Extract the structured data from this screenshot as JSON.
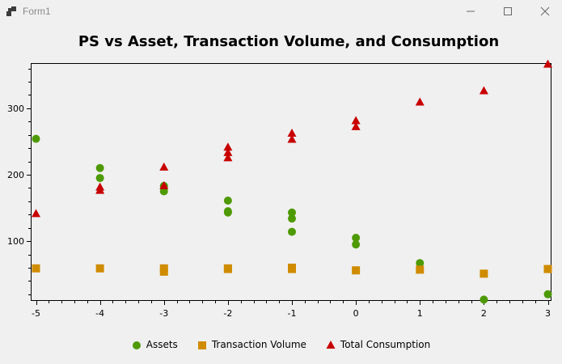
{
  "window": {
    "title": "Form1"
  },
  "chart_data": {
    "type": "scatter",
    "title": "PS vs Asset, Transaction Volume, and Consumption",
    "xlabel": "",
    "ylabel": "",
    "xlim": [
      -5,
      3
    ],
    "ylim": [
      10,
      368
    ],
    "x_ticks": [
      -5,
      -4,
      -3,
      -2,
      -1,
      0,
      1,
      2,
      3
    ],
    "y_ticks": [
      100,
      200,
      300
    ],
    "grid": false,
    "legend_position": "bottom",
    "series": [
      {
        "name": "Assets",
        "marker": "circle",
        "color": "#4e9a06",
        "points": [
          [
            -5,
            254
          ],
          [
            -4,
            210
          ],
          [
            -4,
            195
          ],
          [
            -3,
            183
          ],
          [
            -3,
            175
          ],
          [
            -2,
            161
          ],
          [
            -2,
            145
          ],
          [
            -2,
            143
          ],
          [
            -1,
            143
          ],
          [
            -1,
            134
          ],
          [
            -1,
            114
          ],
          [
            0,
            105
          ],
          [
            0,
            95
          ],
          [
            1,
            67
          ],
          [
            2,
            12
          ],
          [
            3,
            20
          ]
        ]
      },
      {
        "name": "Transaction Volume",
        "marker": "square",
        "color": "#d08c00",
        "points": [
          [
            -5,
            59
          ],
          [
            -4,
            59
          ],
          [
            -3,
            59
          ],
          [
            -3,
            54
          ],
          [
            -2,
            59
          ],
          [
            -2,
            58
          ],
          [
            -1,
            60
          ],
          [
            -1,
            58
          ],
          [
            0,
            56
          ],
          [
            1,
            57
          ],
          [
            2,
            51
          ],
          [
            3,
            58
          ]
        ]
      },
      {
        "name": "Total Consumption",
        "marker": "triangle",
        "color": "#c80000",
        "points": [
          [
            -5,
            141
          ],
          [
            -4,
            181
          ],
          [
            -4,
            176
          ],
          [
            -3,
            211
          ],
          [
            -3,
            183
          ],
          [
            -2,
            241
          ],
          [
            -2,
            233
          ],
          [
            -2,
            225
          ],
          [
            -1,
            262
          ],
          [
            -1,
            253
          ],
          [
            0,
            281
          ],
          [
            0,
            272
          ],
          [
            1,
            309
          ],
          [
            2,
            326
          ],
          [
            3,
            366
          ]
        ]
      }
    ]
  }
}
